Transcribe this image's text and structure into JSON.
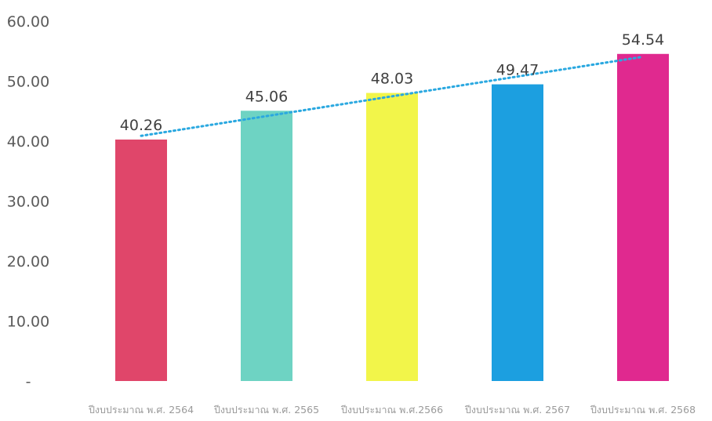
{
  "chart_data": {
    "type": "bar",
    "title": "",
    "xlabel": "",
    "ylabel": "",
    "categories": [
      "ปีงบประมาณ พ.ศ. 2564",
      "ปีงบประมาณ พ.ศ. 2565",
      "ปีงบประมาณ พ.ศ.2566",
      "ปีงบประมาณ พ.ศ. 2567",
      "ปีงบประมาณ พ.ศ. 2568"
    ],
    "values": [
      40.26,
      45.06,
      48.03,
      49.47,
      54.54
    ],
    "value_labels": [
      "40.26",
      "45.06",
      "48.03",
      "49.47",
      "54.54"
    ],
    "bar_colors": [
      "#e0466a",
      "#6ed3c3",
      "#f2f54a",
      "#1c9fe0",
      "#e0298f"
    ],
    "ylim": [
      0,
      60
    ],
    "y_ticks": [
      "-",
      "10.00",
      "20.00",
      "30.00",
      "40.00",
      "50.00",
      "60.00"
    ],
    "y_tick_values": [
      0,
      10,
      20,
      30,
      40,
      50,
      60
    ],
    "trendline": {
      "style": "dotted",
      "color": "#2aa8e0"
    },
    "grid": false,
    "legend": "none"
  }
}
